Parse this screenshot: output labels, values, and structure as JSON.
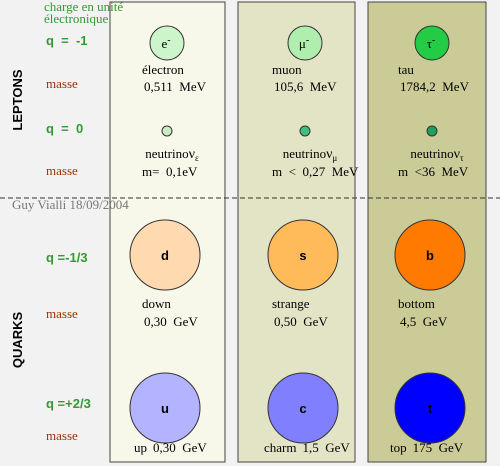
{
  "left": {
    "charge_note": [
      "charge en unité",
      "électronique"
    ],
    "leptons": "LEPTONS",
    "quarks": "QUARKS",
    "rows": [
      {
        "charge": "q  =  -1",
        "mass": "masse"
      },
      {
        "charge": "q  =  0",
        "mass": "masse"
      },
      {
        "charge": "q =-1/3",
        "mass": "masse"
      },
      {
        "charge": "q =+2/3",
        "mass": "masse"
      }
    ]
  },
  "signature": "Guy Vialli 18/09/2004",
  "columns": [
    {
      "lepton": {
        "symbol": "e",
        "sup": "-",
        "name": "électron",
        "mass": "0,511  MeV"
      },
      "neutrino": {
        "name": "neutrino",
        "symbol": "ν",
        "sub": "ε",
        "mass": "m=  0,1eV"
      },
      "quark_down": {
        "symbol": "d",
        "name": "down",
        "mass": "0,30  GeV"
      },
      "quark_up": {
        "symbol": "u",
        "name": "up",
        "mass": "0,30  GeV"
      }
    },
    {
      "lepton": {
        "symbol": "μ",
        "sup": "-",
        "name": "muon",
        "mass": "105,6  MeV"
      },
      "neutrino": {
        "name": "neutrino",
        "symbol": "ν",
        "sub": "μ",
        "mass": "m  <  0,27  MeV"
      },
      "quark_down": {
        "symbol": "s",
        "name": "strange",
        "mass": "0,50  GeV"
      },
      "quark_up": {
        "symbol": "c",
        "name": "charm",
        "mass": "1,5  GeV"
      }
    },
    {
      "lepton": {
        "symbol": "τ",
        "sup": "-",
        "name": "tau",
        "mass": "1784,2  MeV"
      },
      "neutrino": {
        "name": "neutrino",
        "symbol": "ν",
        "sub": "τ",
        "mass": "m  <36  MeV"
      },
      "quark_down": {
        "symbol": "b",
        "name": "bottom",
        "mass": "4,5  GeV"
      },
      "quark_up": {
        "symbol": "t",
        "name": "top",
        "mass": "175  GeV"
      }
    }
  ]
}
